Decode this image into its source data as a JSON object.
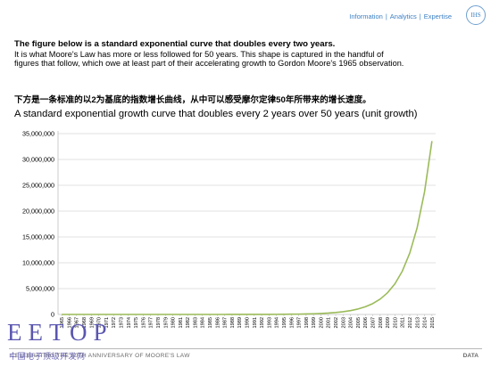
{
  "nav": {
    "items": [
      "Information",
      "Analytics",
      "Expertise"
    ],
    "sep": "|",
    "logo": "IHS"
  },
  "intro": {
    "headline": "The figure below is a standard exponential curve that doubles every two years.",
    "body": "It is what Moore's Law has more or less followed for 50 years. This shape is captured in the handful of figures that follow, which owe at least part of their accelerating growth to Gordon Moore's 1965 observation."
  },
  "chinese_caption": "下方是一条标准的以2为基底的指数增长曲线，从中可以感受摩尔定律50年所带来的增长速度。",
  "footer": {
    "left": "CELEBRATING THE 50TH ANNIVERSARY OF MOORE'S LAW",
    "right": "DATA"
  },
  "watermark": {
    "text": "EETOP",
    "sub": "中国电子顶级开发网"
  },
  "chart_data": {
    "type": "line",
    "title": "A standard exponential growth curve that doubles every 2 years over 50 years (unit growth)",
    "x": [
      "1965",
      "1966",
      "1967",
      "1968",
      "1969",
      "1970",
      "1971",
      "1972",
      "1973",
      "1974",
      "1975",
      "1976",
      "1977",
      "1978",
      "1979",
      "1980",
      "1981",
      "1982",
      "1983",
      "1984",
      "1985",
      "1986",
      "1987",
      "1988",
      "1989",
      "1990",
      "1991",
      "1992",
      "1993",
      "1994",
      "1995",
      "1996",
      "1997",
      "1998",
      "1999",
      "2000",
      "2001",
      "2002",
      "2003",
      "2004",
      "2005",
      "2006",
      "2007",
      "2008",
      "2009",
      "2010",
      "2011",
      "2012",
      "2013",
      "2014",
      "2015"
    ],
    "series": [
      {
        "values": [
          1,
          1.41,
          2,
          2.83,
          4,
          5.66,
          8,
          11.3,
          16,
          22.6,
          32,
          45.3,
          64,
          90.5,
          128,
          181,
          256,
          362,
          512,
          724,
          1024,
          1448,
          2048,
          2896,
          4096,
          5793,
          8192,
          11585,
          16384,
          23170,
          32768,
          46341,
          65536,
          92682,
          131072,
          185364,
          262144,
          370728,
          524288,
          741455,
          1048576,
          1482910,
          2097152,
          2965821,
          4194304,
          5931642,
          8388608,
          11863283,
          16777216,
          23726566,
          33554432
        ],
        "color": "#9bbb59"
      }
    ],
    "yticks": [
      "0",
      "5,000,000",
      "10,000,000",
      "15,000,000",
      "20,000,000",
      "25,000,000",
      "30,000,000",
      "35,000,000"
    ],
    "ylim": [
      0,
      35000000
    ],
    "grid": "horizontal",
    "colors": {
      "line": "#9bbb59",
      "grid": "#d9d9d9",
      "axis": "#bfbfbf"
    }
  }
}
